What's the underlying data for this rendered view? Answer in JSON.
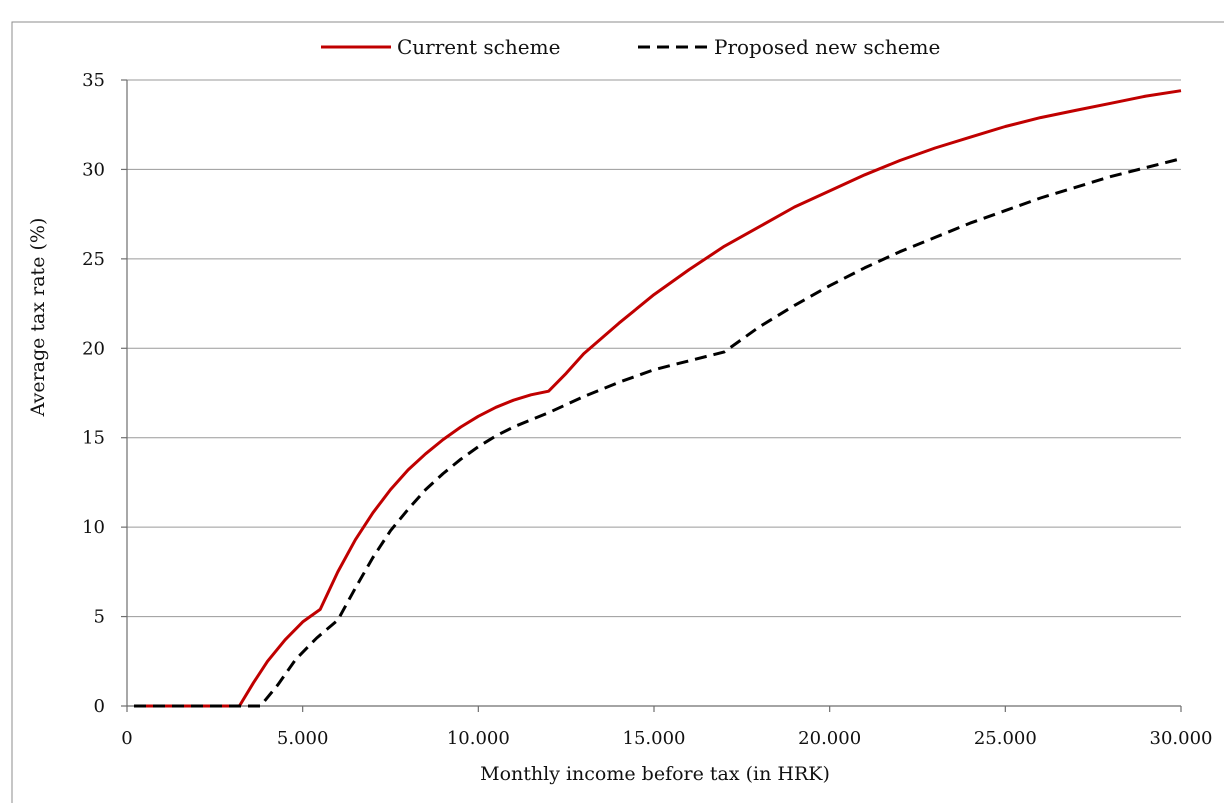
{
  "chart_data": {
    "type": "line",
    "title": "",
    "xlabel": "Monthly income before tax (in HRK)",
    "ylabel": "Average tax rate (%)",
    "xlim": [
      0,
      30000
    ],
    "ylim": [
      0,
      35
    ],
    "x_ticks": [
      0,
      5000,
      10000,
      15000,
      20000,
      25000,
      30000
    ],
    "x_tick_labels": [
      "0",
      "5.000",
      "10.000",
      "15.000",
      "20.000",
      "25.000",
      "30.000"
    ],
    "y_ticks": [
      0,
      5,
      10,
      15,
      20,
      25,
      30,
      35
    ],
    "y_tick_labels": [
      "0",
      "5",
      "10",
      "15",
      "20",
      "25",
      "30",
      "35"
    ],
    "grid": "horizontal",
    "legend": "top-center",
    "series": [
      {
        "name": "Current scheme",
        "color": "#c00000",
        "style": "solid",
        "x": [
          200,
          3200,
          3600,
          4000,
          4500,
          5000,
          5500,
          6000,
          6500,
          7000,
          7500,
          8000,
          8500,
          9000,
          9500,
          10000,
          10500,
          11000,
          11500,
          12000,
          12500,
          13000,
          14000,
          15000,
          16000,
          17000,
          18000,
          19000,
          20000,
          21000,
          22000,
          23000,
          24000,
          25000,
          26000,
          27000,
          28000,
          29000,
          30000
        ],
        "y": [
          0,
          0,
          1.3,
          2.5,
          3.7,
          4.7,
          5.4,
          7.5,
          9.3,
          10.8,
          12.1,
          13.2,
          14.1,
          14.9,
          15.6,
          16.2,
          16.7,
          17.1,
          17.4,
          17.6,
          18.6,
          19.7,
          21.4,
          23.0,
          24.4,
          25.7,
          26.8,
          27.9,
          28.8,
          29.7,
          30.5,
          31.2,
          31.8,
          32.4,
          32.9,
          33.3,
          33.7,
          34.1,
          34.4
        ]
      },
      {
        "name": "Proposed new scheme",
        "color": "#000000",
        "style": "dashed",
        "x": [
          200,
          3800,
          4300,
          4800,
          5400,
          6000,
          6500,
          7000,
          7500,
          8000,
          8500,
          9000,
          9500,
          10000,
          10500,
          11000,
          11500,
          12000,
          13000,
          14000,
          15000,
          16000,
          17000,
          18000,
          19000,
          20000,
          21000,
          22000,
          23000,
          24000,
          25000,
          26000,
          27000,
          28000,
          29000,
          30000
        ],
        "y": [
          0,
          0,
          1.2,
          2.6,
          3.8,
          4.8,
          6.6,
          8.3,
          9.8,
          11.0,
          12.1,
          13.0,
          13.8,
          14.5,
          15.1,
          15.6,
          16.0,
          16.4,
          17.3,
          18.1,
          18.8,
          19.3,
          19.8,
          21.2,
          22.4,
          23.5,
          24.5,
          25.4,
          26.2,
          27.0,
          27.7,
          28.4,
          29.0,
          29.6,
          30.1,
          30.6
        ]
      }
    ]
  }
}
